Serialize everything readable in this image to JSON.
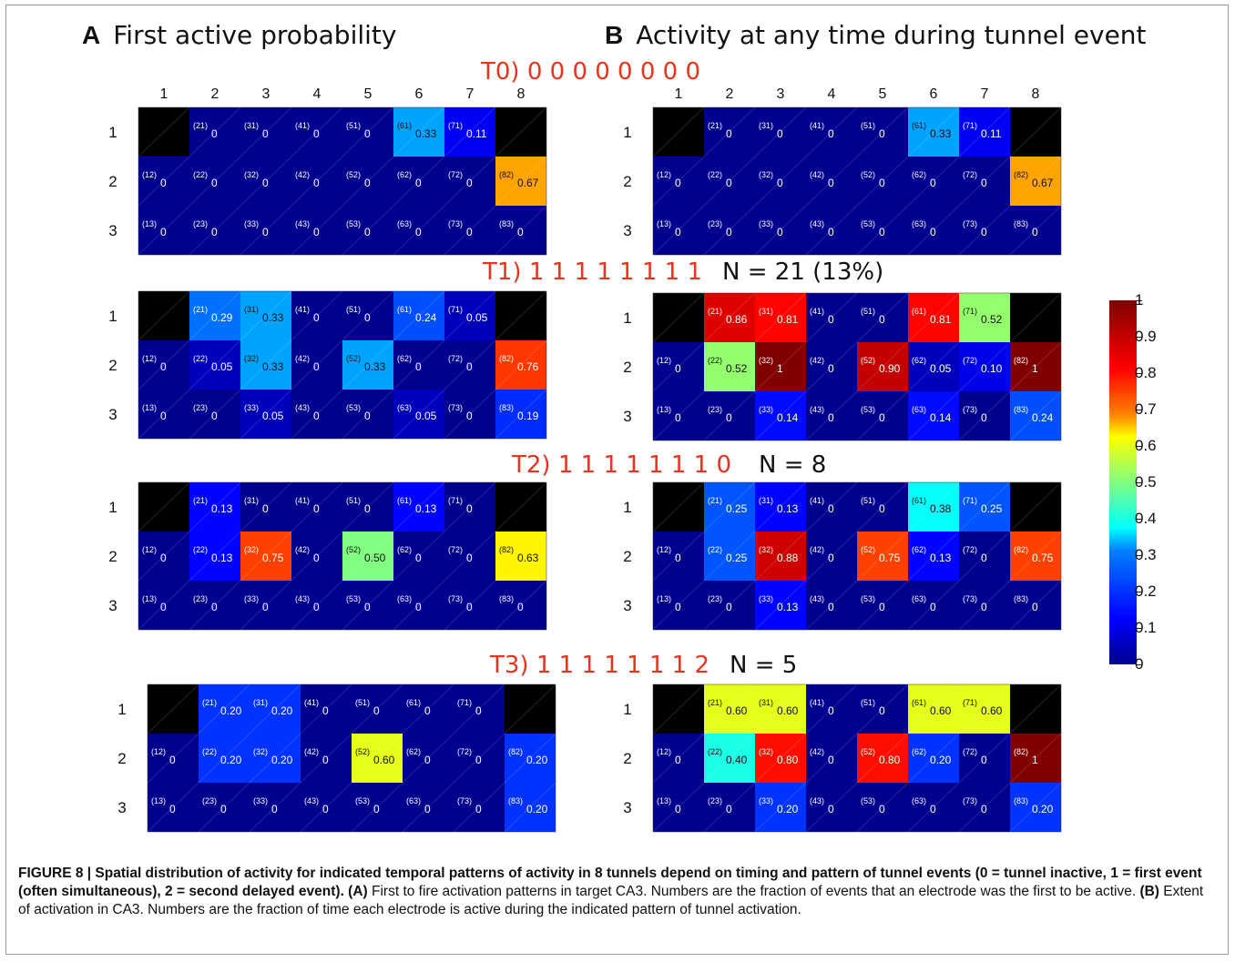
{
  "figure": {
    "panel_a": {
      "letter": "A",
      "title": "First active probability"
    },
    "panel_b": {
      "letter": "B",
      "title": "Activity at any time during tunnel event"
    },
    "rows": [
      {
        "pattern": "T0) 0 0 0 0 0 0 0 0",
        "n": ""
      },
      {
        "pattern": "T1) 1 1 1 1 1 1 1 1",
        "n": "N = 21 (13%)"
      },
      {
        "pattern": "T2) 1 1 1 1 1 1 1 0",
        "n": "N = 8"
      },
      {
        "pattern": "T3) 1 1 1 1 1 1 1 2",
        "n": "N = 5"
      }
    ],
    "col_labels": [
      "1",
      "2",
      "3",
      "4",
      "5",
      "6",
      "7",
      "8"
    ],
    "row_labels": [
      "1",
      "2",
      "3"
    ],
    "colorbar_ticks": [
      "0",
      "0.1",
      "0.2",
      "0.3",
      "0.4",
      "0.5",
      "0.6",
      "0.7",
      "0.8",
      "0.9",
      "1"
    ]
  },
  "heatmaps": {
    "A0": [
      [
        "",
        "(21)|0",
        "(31)|0",
        "(41)|0",
        "(51)|0",
        "(61)|0.33",
        "(71)|0.11",
        ""
      ],
      [
        "(12)|0",
        "(22)|0",
        "(32)|0",
        "(42)|0",
        "(52)|0",
        "(62)|0",
        "(72)|0",
        "(82)|0.67"
      ],
      [
        "(13)|0",
        "(23)|0",
        "(33)|0",
        "(43)|0",
        "(53)|0",
        "(63)|0",
        "(73)|0",
        "(83)|0"
      ]
    ],
    "B0": [
      [
        "",
        "(21)|0",
        "(31)|0",
        "(41)|0",
        "(51)|0",
        "(61)|0.33",
        "(71)|0.11",
        ""
      ],
      [
        "(12)|0",
        "(22)|0",
        "(32)|0",
        "(42)|0",
        "(52)|0",
        "(62)|0",
        "(72)|0",
        "(82)|0.67"
      ],
      [
        "(13)|0",
        "(23)|0",
        "(33)|0",
        "(43)|0",
        "(53)|0",
        "(63)|0",
        "(73)|0",
        "(83)|0"
      ]
    ],
    "A1": [
      [
        "",
        "(21)|0.29",
        "(31)|0.33",
        "(41)|0",
        "(51)|0",
        "(61)|0.24",
        "(71)|0.05",
        ""
      ],
      [
        "(12)|0",
        "(22)|0.05",
        "(32)|0.33",
        "(42)|0",
        "(52)|0.33",
        "(62)|0",
        "(72)|0",
        "(82)|0.76"
      ],
      [
        "(13)|0",
        "(23)|0",
        "(33)|0.05",
        "(43)|0",
        "(53)|0",
        "(63)|0.05",
        "(73)|0",
        "(83)|0.19"
      ]
    ],
    "B1": [
      [
        "",
        "(21)|0.86",
        "(31)|0.81",
        "(41)|0",
        "(51)|0",
        "(61)|0.81",
        "(71)|0.52",
        ""
      ],
      [
        "(12)|0",
        "(22)|0.52",
        "(32)|1",
        "(42)|0",
        "(52)|0.90",
        "(62)|0.05",
        "(72)|0.10",
        "(82)|1"
      ],
      [
        "(13)|0",
        "(23)|0",
        "(33)|0.14",
        "(43)|0",
        "(53)|0",
        "(63)|0.14",
        "(73)|0",
        "(83)|0.24"
      ]
    ],
    "A2": [
      [
        "",
        "(21)|0.13",
        "(31)|0",
        "(41)|0",
        "(51)|0",
        "(61)|0.13",
        "(71)|0",
        ""
      ],
      [
        "(12)|0",
        "(22)|0.13",
        "(32)|0.75",
        "(42)|0",
        "(52)|0.50",
        "(62)|0",
        "(72)|0",
        "(82)|0.63"
      ],
      [
        "(13)|0",
        "(23)|0",
        "(33)|0",
        "(43)|0",
        "(53)|0",
        "(63)|0",
        "(73)|0",
        "(83)|0"
      ]
    ],
    "B2": [
      [
        "",
        "(21)|0.25",
        "(31)|0.13",
        "(41)|0",
        "(51)|0",
        "(61)|0.38",
        "(71)|0.25",
        ""
      ],
      [
        "(12)|0",
        "(22)|0.25",
        "(32)|0.88",
        "(42)|0",
        "(52)|0.75",
        "(62)|0.13",
        "(72)|0",
        "(82)|0.75"
      ],
      [
        "(13)|0",
        "(23)|0",
        "(33)|0.13",
        "(43)|0",
        "(53)|0",
        "(63)|0",
        "(73)|0",
        "(83)|0"
      ]
    ],
    "A3": [
      [
        "",
        "(21)|0.20",
        "(31)|0.20",
        "(41)|0",
        "(51)|0",
        "(61)|0",
        "(71)|0",
        ""
      ],
      [
        "(12)|0",
        "(22)|0.20",
        "(32)|0.20",
        "(42)|0",
        "(52)|0.60",
        "(62)|0",
        "(72)|0",
        "(82)|0.20"
      ],
      [
        "(13)|0",
        "(23)|0",
        "(33)|0",
        "(43)|0",
        "(53)|0",
        "(63)|0",
        "(73)|0",
        "(83)|0.20"
      ]
    ],
    "B3": [
      [
        "",
        "(21)|0.60",
        "(31)|0.60",
        "(41)|0",
        "(51)|0",
        "(61)|0.60",
        "(71)|0.60",
        ""
      ],
      [
        "(12)|0",
        "(22)|0.40",
        "(32)|0.80",
        "(42)|0",
        "(52)|0.80",
        "(62)|0.20",
        "(72)|0",
        "(82)|1"
      ],
      [
        "(13)|0",
        "(23)|0",
        "(33)|0.20",
        "(43)|0",
        "(53)|0",
        "(63)|0",
        "(73)|0",
        "(83)|0.20"
      ]
    ]
  },
  "caption": {
    "bold_1": "FIGURE 8 | Spatial distribution of activity for indicated temporal patterns of activity in 8 tunnels depend on timing and pattern of tunnel events (0 = tunnel inactive, 1 = first event (often simultaneous), 2 = second delayed event). (A)",
    "text_1": " First to fire activation patterns in target CA3. Numbers are the fraction of events that an electrode was the first to be active. ",
    "bold_2": "(B)",
    "text_2": " Extent of activation in CA3. Numbers are the fraction of time each electrode is active during the indicated pattern of tunnel activation."
  }
}
